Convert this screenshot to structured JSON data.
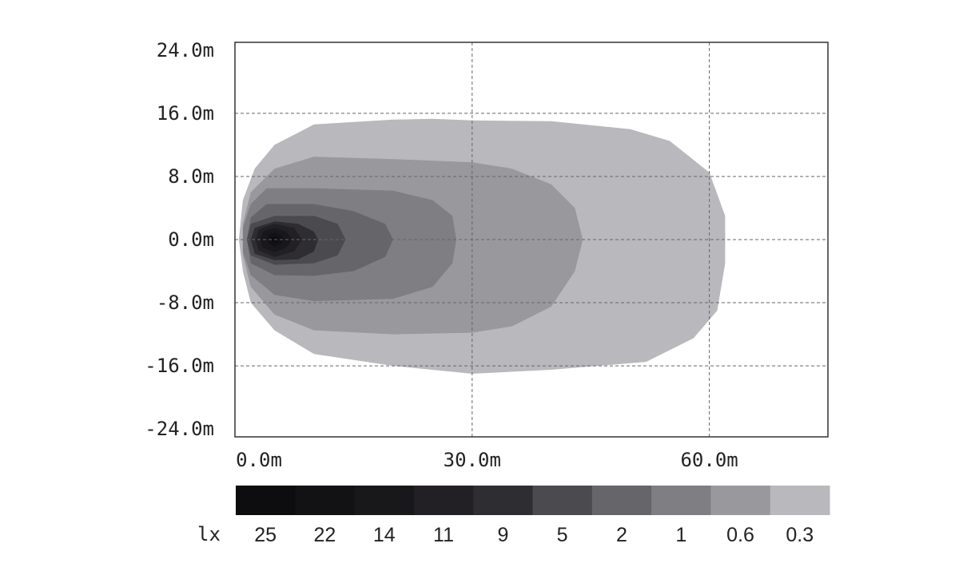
{
  "chart_data": {
    "type": "heatmap",
    "title": "",
    "xlabel": "",
    "ylabel": "",
    "xlim": [
      0,
      75
    ],
    "ylim": [
      -25,
      25
    ],
    "x_ticks": [
      {
        "value": 0,
        "label": "0.0m"
      },
      {
        "value": 30,
        "label": "30.0m"
      },
      {
        "value": 60,
        "label": "60.0m"
      }
    ],
    "y_ticks": [
      {
        "value": 24,
        "label": "24.0m"
      },
      {
        "value": 16,
        "label": "16.0m"
      },
      {
        "value": 8,
        "label": "8.0m"
      },
      {
        "value": 0,
        "label": "0.0m"
      },
      {
        "value": -8,
        "label": "-8.0m"
      },
      {
        "value": -16,
        "label": "-16.0m"
      },
      {
        "value": -24,
        "label": "-24.0m"
      }
    ],
    "grid": true,
    "legend": {
      "placement": "bottom",
      "unit": "lx",
      "levels": [
        "25",
        "22",
        "14",
        "11",
        "9",
        "5",
        "2",
        "1",
        "0.6",
        "0.3"
      ],
      "colors": [
        "#0d0c0f",
        "#121114",
        "#18171a",
        "#222024",
        "#2e2d31",
        "#4b4a4e",
        "#66666a",
        "#7f7e82",
        "#99989c",
        "#b9b8bd"
      ]
    },
    "contours": [
      {
        "level": "0.3",
        "color": "#b9b8bd",
        "points": [
          [
            1,
            5
          ],
          [
            2.5,
            9
          ],
          [
            5,
            12
          ],
          [
            10,
            14.6
          ],
          [
            20,
            15.2
          ],
          [
            25,
            15.3
          ],
          [
            30,
            15.1
          ],
          [
            40,
            15
          ],
          [
            50,
            14
          ],
          [
            55,
            12.5
          ],
          [
            60,
            8.5
          ],
          [
            62,
            3
          ],
          [
            62,
            -3
          ],
          [
            61,
            -9
          ],
          [
            58,
            -12.5
          ],
          [
            52,
            -15.5
          ],
          [
            40,
            -16.5
          ],
          [
            30,
            -17
          ],
          [
            20,
            -16
          ],
          [
            10,
            -14.5
          ],
          [
            5,
            -11.5
          ],
          [
            2,
            -8
          ],
          [
            1,
            -4
          ],
          [
            0.5,
            0
          ]
        ]
      },
      {
        "level": "0.6",
        "color": "#99989c",
        "points": [
          [
            2,
            6
          ],
          [
            5,
            9
          ],
          [
            10,
            10.5
          ],
          [
            20,
            10.2
          ],
          [
            30,
            9.8
          ],
          [
            35,
            9
          ],
          [
            40,
            7
          ],
          [
            43,
            4
          ],
          [
            44,
            0
          ],
          [
            43,
            -4
          ],
          [
            40,
            -8.5
          ],
          [
            35,
            -11
          ],
          [
            30,
            -11.8
          ],
          [
            20,
            -12
          ],
          [
            10,
            -11.5
          ],
          [
            5,
            -9.5
          ],
          [
            2,
            -6
          ],
          [
            1,
            -2
          ],
          [
            1,
            2
          ]
        ]
      },
      {
        "level": "1",
        "color": "#7f7e82",
        "points": [
          [
            2,
            4.5
          ],
          [
            4,
            6.5
          ],
          [
            10,
            6.5
          ],
          [
            20,
            6.2
          ],
          [
            25,
            5
          ],
          [
            27.5,
            3
          ],
          [
            28,
            0
          ],
          [
            27.5,
            -3
          ],
          [
            25,
            -6
          ],
          [
            20,
            -7.5
          ],
          [
            10,
            -7.8
          ],
          [
            5,
            -7
          ],
          [
            2,
            -4.5
          ],
          [
            1,
            -1.5
          ],
          [
            1,
            1.5
          ]
        ]
      },
      {
        "level": "2",
        "color": "#66666a",
        "points": [
          [
            2,
            2.8
          ],
          [
            4,
            4.5
          ],
          [
            10,
            4.5
          ],
          [
            15,
            3.6
          ],
          [
            19,
            2
          ],
          [
            20,
            0
          ],
          [
            19,
            -2.2
          ],
          [
            15,
            -4
          ],
          [
            10,
            -4.6
          ],
          [
            5,
            -4.5
          ],
          [
            2,
            -3
          ],
          [
            1.5,
            0
          ]
        ]
      },
      {
        "level": "5",
        "color": "#4b4a4e",
        "points": [
          [
            2,
            2
          ],
          [
            5,
            3
          ],
          [
            10,
            3
          ],
          [
            13,
            2
          ],
          [
            14,
            0
          ],
          [
            13,
            -2
          ],
          [
            10,
            -3
          ],
          [
            5,
            -3.2
          ],
          [
            2,
            -2
          ],
          [
            1.5,
            0
          ]
        ]
      },
      {
        "level": "9",
        "color": "#2e2d31",
        "points": [
          [
            2.5,
            1.5
          ],
          [
            5,
            2.3
          ],
          [
            8,
            2
          ],
          [
            10,
            1
          ],
          [
            10.5,
            0
          ],
          [
            10,
            -1.5
          ],
          [
            8,
            -2.5
          ],
          [
            5,
            -2.6
          ],
          [
            2.5,
            -1.8
          ],
          [
            2,
            0
          ]
        ]
      },
      {
        "level": "11",
        "color": "#222024",
        "points": [
          [
            3,
            1.3
          ],
          [
            5,
            2
          ],
          [
            7.5,
            1.5
          ],
          [
            8.5,
            0
          ],
          [
            7.5,
            -1.5
          ],
          [
            5,
            -2.2
          ],
          [
            3,
            -1.4
          ],
          [
            2.6,
            0
          ]
        ]
      },
      {
        "level": "14",
        "color": "#18171a",
        "points": [
          [
            3.5,
            1
          ],
          [
            5,
            1.5
          ],
          [
            6.5,
            1
          ],
          [
            7.3,
            0
          ],
          [
            6.5,
            -1
          ],
          [
            5,
            -1.6
          ],
          [
            3.5,
            -1
          ],
          [
            3.2,
            0
          ]
        ]
      },
      {
        "level": "22",
        "color": "#121114",
        "points": [
          [
            4.3,
            0.6
          ],
          [
            5,
            0.9
          ],
          [
            5.9,
            0.5
          ],
          [
            6.2,
            0
          ],
          [
            5.9,
            -0.5
          ],
          [
            5,
            -0.9
          ],
          [
            4.3,
            -0.5
          ],
          [
            4.1,
            0
          ]
        ]
      },
      {
        "level": "25",
        "color": "#0d0c0f",
        "points": [
          [
            4.7,
            0.3
          ],
          [
            5.2,
            0.35
          ],
          [
            5.5,
            0
          ],
          [
            5.2,
            -0.35
          ],
          [
            4.7,
            -0.3
          ],
          [
            4.6,
            0
          ]
        ]
      }
    ]
  }
}
